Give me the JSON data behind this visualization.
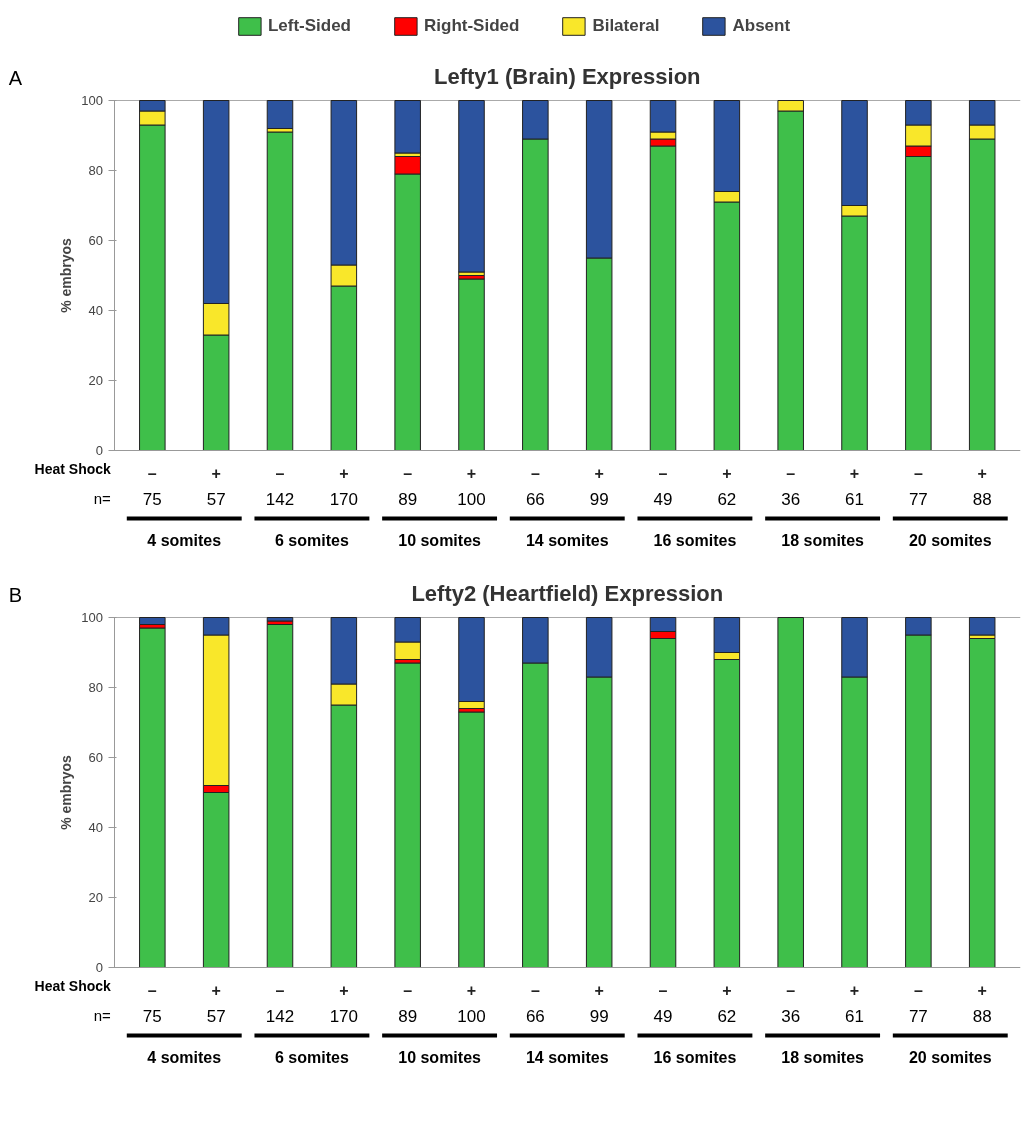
{
  "chart_data": [
    {
      "type": "bar",
      "stacked": true,
      "title": "Lefty1 (Brain) Expression",
      "ylabel": "% embryos",
      "xlabel": "Heat Shock",
      "legend": "top",
      "categories": [
        "–",
        "+",
        "–",
        "+",
        "–",
        "+",
        "–",
        "+",
        "–",
        "+",
        "–",
        "+",
        "–",
        "+"
      ],
      "ylim": [
        0,
        100
      ],
      "yticks": [
        0,
        20,
        40,
        60,
        80,
        100
      ],
      "series": [
        {
          "name": "Left-Sided",
          "color": "#3fbf4a",
          "values": [
            93,
            33,
            91,
            47,
            79,
            49,
            89,
            55,
            87,
            71,
            97,
            67,
            84,
            89
          ]
        },
        {
          "name": "Right-Sided",
          "color": "#ff0000",
          "values": [
            0,
            0,
            0,
            0,
            5,
            1,
            0,
            0,
            2,
            0,
            0,
            0,
            3,
            0
          ]
        },
        {
          "name": "Bilateral",
          "color": "#f9e72a",
          "values": [
            4,
            9,
            1,
            6,
            1,
            1,
            0,
            0,
            2,
            3,
            3,
            3,
            6,
            4
          ]
        },
        {
          "name": "Absent",
          "color": "#2c539e",
          "values": [
            3,
            58,
            8,
            47,
            15,
            49,
            11,
            45,
            9,
            26,
            0,
            30,
            7,
            7
          ]
        }
      ],
      "annotations": [
        "A",
        "n=",
        "75",
        "57",
        "142",
        "170",
        "89",
        "100",
        "66",
        "99",
        "49",
        "62",
        "36",
        "61",
        "77",
        "88",
        "4 somites",
        "6 somites",
        "10 somites",
        "14 somites",
        "16 somites",
        "18 somites",
        "20 somites"
      ]
    },
    {
      "type": "bar",
      "stacked": true,
      "title": "Lefty2 (Heartfield) Expression",
      "ylabel": "% embryos",
      "xlabel": "Heat Shock",
      "categories": [
        "–",
        "+",
        "–",
        "+",
        "–",
        "+",
        "–",
        "+",
        "–",
        "+",
        "–",
        "+",
        "–",
        "+"
      ],
      "ylim": [
        0,
        100
      ],
      "yticks": [
        0,
        20,
        40,
        60,
        80,
        100
      ],
      "series": [
        {
          "color": "#3fbf4a",
          "values": [
            97,
            50,
            98,
            75,
            87,
            73,
            87,
            83,
            94,
            88,
            100,
            83,
            95,
            94
          ]
        },
        {
          "color": "#ff0000",
          "values": [
            1,
            2,
            1,
            0,
            1,
            1,
            0,
            0,
            2,
            0,
            0,
            0,
            0,
            0
          ]
        },
        {
          "color": "#f9e72a",
          "values": [
            0,
            43,
            0,
            6,
            5,
            2,
            0,
            0,
            0,
            2,
            0,
            0,
            0,
            1
          ]
        },
        {
          "color": "#2c539e",
          "values": [
            2,
            5,
            1,
            19,
            7,
            24,
            13,
            17,
            4,
            10,
            0,
            17,
            5,
            5
          ]
        }
      ],
      "annotations": [
        "B",
        "n=",
        "75",
        "57",
        "142",
        "170",
        "89",
        "100",
        "66",
        "99",
        "49",
        "62",
        "36",
        "61",
        "77",
        "88",
        "4 somites",
        "6 somites",
        "10 somites",
        "14 somites",
        "16 somites",
        "18 somites",
        "20 somites"
      ]
    }
  ]
}
